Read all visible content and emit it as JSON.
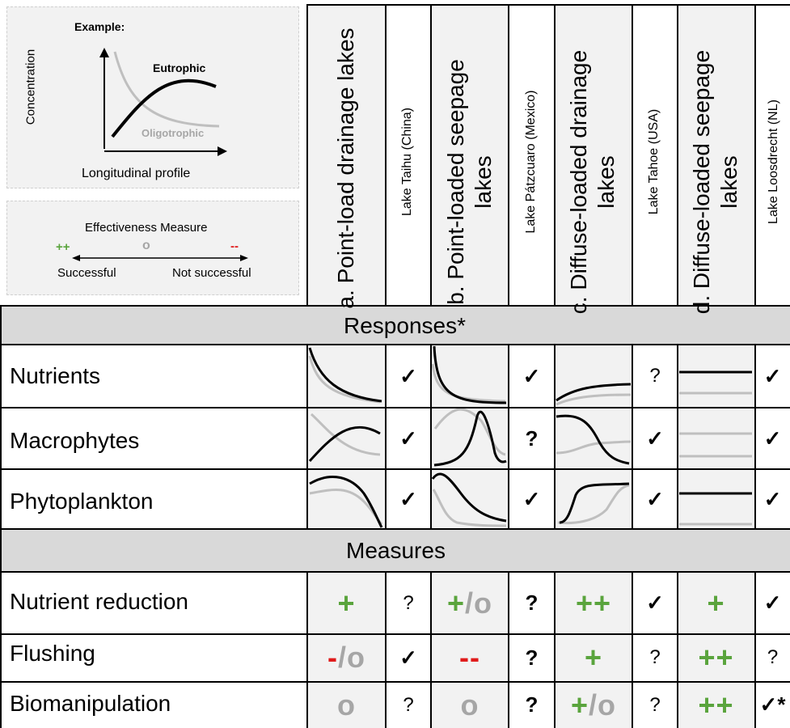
{
  "example_box": {
    "title": "Example:",
    "y_label": "Concentration",
    "x_label": "Longitudinal profile",
    "eutrophic_label": "Eutrophic",
    "oligotrophic_label": "Oligotrophic"
  },
  "legend_box": {
    "title": "Effectiveness Measure",
    "plus": "++",
    "neutral": "o",
    "minus": "--",
    "left_label": "Successful",
    "right_label": "Not successful"
  },
  "columns": [
    {
      "label": "a. Point-load drainage lakes"
    },
    {
      "label": "Lake Taihu (China)"
    },
    {
      "label": "b. Point-loaded seepage lakes"
    },
    {
      "label": "Lake Pátzcuaro (Mexico)"
    },
    {
      "label": "c. Diffuse-loaded drainage lakes"
    },
    {
      "label": "Lake Tahoe (USA)"
    },
    {
      "label": "d. Diffuse-loaded seepage lakes"
    },
    {
      "label": "Lake Loosdrecht (NL)"
    }
  ],
  "sections": {
    "responses": "Responses*",
    "measures": "Measures"
  },
  "response_rows": [
    {
      "label": "Nutrients",
      "checks": [
        "✓",
        "✓",
        "?",
        "✓"
      ]
    },
    {
      "label": "Macrophytes",
      "checks": [
        "✓",
        "?",
        "✓",
        "✓"
      ]
    },
    {
      "label": "Phytoplankton",
      "checks": [
        "✓",
        "✓",
        "✓",
        "✓"
      ]
    }
  ],
  "measure_rows": [
    {
      "label": "Nutrient reduction",
      "effects": [
        "+",
        "+/o",
        "++",
        "+"
      ],
      "checks": [
        "?",
        "?",
        "✓",
        "✓"
      ]
    },
    {
      "label": "Flushing",
      "effects": [
        "-/o",
        "--",
        "+",
        "++"
      ],
      "checks": [
        "✓",
        "?",
        "?",
        "?"
      ]
    },
    {
      "label": "Biomanipulation",
      "effects": [
        "o",
        "o",
        "+/o",
        "++"
      ],
      "checks": [
        "?",
        "?",
        "?",
        "✓*"
      ]
    }
  ],
  "colors": {
    "positive": "#5aa43d",
    "negative": "#e01b1b",
    "neutral": "#a6a6a6",
    "eutrophic": "#000000",
    "oligotrophic": "#bfbfbf"
  }
}
